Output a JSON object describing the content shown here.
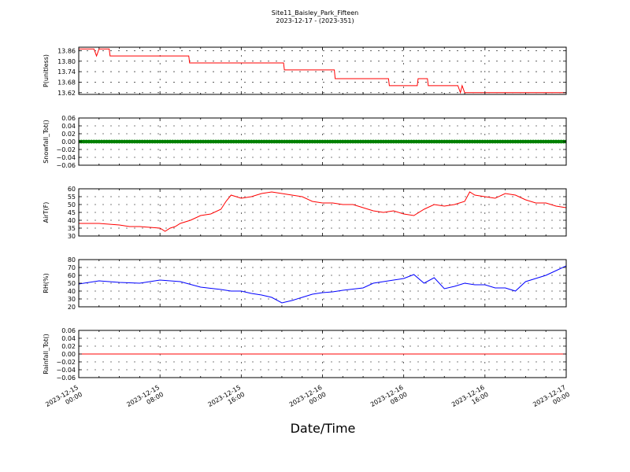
{
  "title": "Site11_Baisley_Park_Fifteen",
  "subtitle": "2023-12-17 - (2023-351)",
  "xlabel": "Date/Time",
  "chart_data": [
    {
      "type": "line",
      "ylabel": "P(unitless)",
      "ylim": [
        13.61,
        13.88
      ],
      "yticks": [
        13.62,
        13.68,
        13.74,
        13.8,
        13.86
      ],
      "ytick_labels": [
        "13.62",
        "13.68",
        "13.74",
        "13.80",
        "13.86"
      ],
      "grid": true,
      "series": [
        {
          "color": "#ff0000",
          "x": [
            "2023-12-15 00:00",
            "2023-12-15 01:30",
            "2023-12-15 01:45",
            "2023-12-15 02:00",
            "2023-12-15 03:00",
            "2023-12-15 03:05",
            "2023-12-15 08:00",
            "2023-12-15 10:50",
            "2023-12-15 10:55",
            "2023-12-15 20:10",
            "2023-12-15 20:15",
            "2023-12-16 01:10",
            "2023-12-16 01:15",
            "2023-12-16 06:30",
            "2023-12-16 06:35",
            "2023-12-16 09:20",
            "2023-12-16 09:25",
            "2023-12-16 10:20",
            "2023-12-16 10:25",
            "2023-12-16 13:20",
            "2023-12-16 13:35",
            "2023-12-16 13:45",
            "2023-12-16 14:00",
            "2023-12-17 00:00"
          ],
          "y": [
            13.87,
            13.87,
            13.83,
            13.87,
            13.87,
            13.83,
            13.83,
            13.83,
            13.79,
            13.79,
            13.75,
            13.75,
            13.7,
            13.7,
            13.66,
            13.66,
            13.7,
            13.7,
            13.66,
            13.66,
            13.62,
            13.66,
            13.62,
            13.62
          ]
        }
      ]
    },
    {
      "type": "scatter",
      "ylabel": "Snowfall_Tot()",
      "ylim": [
        -0.06,
        0.06
      ],
      "yticks": [
        -0.06,
        -0.04,
        -0.02,
        0.0,
        0.02,
        0.04,
        0.06
      ],
      "ytick_labels": [
        "−0.06",
        "−0.04",
        "−0.02",
        "0.00",
        "0.02",
        "0.04",
        "0.06"
      ],
      "grid": true,
      "series": [
        {
          "color": "#008000",
          "x_start": "2023-12-15 00:00",
          "x_end": "2023-12-17 00:00",
          "interval_minutes": 15,
          "value": 0.0
        }
      ]
    },
    {
      "type": "line",
      "ylabel": "AirT(F)",
      "ylim": [
        30,
        60
      ],
      "yticks": [
        30,
        35,
        40,
        45,
        50,
        55,
        60
      ],
      "ytick_labels": [
        "30",
        "35",
        "40",
        "45",
        "50",
        "55",
        "60"
      ],
      "grid": true,
      "series": [
        {
          "color": "#ff0000",
          "x": [
            "2023-12-15 00:00",
            "2023-12-15 02:00",
            "2023-12-15 04:00",
            "2023-12-15 05:00",
            "2023-12-15 06:00",
            "2023-12-15 08:00",
            "2023-12-15 08:30",
            "2023-12-15 09:00",
            "2023-12-15 09:30",
            "2023-12-15 10:00",
            "2023-12-15 11:00",
            "2023-12-15 12:00",
            "2023-12-15 13:00",
            "2023-12-15 14:00",
            "2023-12-15 14:30",
            "2023-12-15 15:00",
            "2023-12-15 16:00",
            "2023-12-15 17:00",
            "2023-12-15 18:00",
            "2023-12-15 19:00",
            "2023-12-15 20:00",
            "2023-12-15 21:00",
            "2023-12-15 22:00",
            "2023-12-15 23:00",
            "2023-12-16 00:00",
            "2023-12-16 01:00",
            "2023-12-16 02:00",
            "2023-12-16 03:00",
            "2023-12-16 04:00",
            "2023-12-16 05:00",
            "2023-12-16 06:00",
            "2023-12-16 07:00",
            "2023-12-16 08:00",
            "2023-12-16 09:00",
            "2023-12-16 10:00",
            "2023-12-16 11:00",
            "2023-12-16 12:00",
            "2023-12-16 13:00",
            "2023-12-16 14:00",
            "2023-12-16 14:30",
            "2023-12-16 15:00",
            "2023-12-16 16:00",
            "2023-12-16 17:00",
            "2023-12-16 18:00",
            "2023-12-16 19:00",
            "2023-12-16 20:00",
            "2023-12-16 21:00",
            "2023-12-16 22:00",
            "2023-12-16 23:00",
            "2023-12-17 00:00"
          ],
          "y": [
            38,
            38,
            37,
            36,
            36,
            35,
            33,
            35,
            36,
            38,
            40,
            43,
            44,
            47,
            52,
            56,
            54,
            55,
            57,
            58,
            57,
            56,
            55,
            52,
            51,
            51,
            50,
            50,
            48,
            46,
            45,
            46,
            44,
            43,
            47,
            50,
            49,
            50,
            52,
            58,
            56,
            55,
            54,
            57,
            56,
            53,
            51,
            51,
            49,
            48
          ]
        }
      ]
    },
    {
      "type": "line",
      "ylabel": "RH(%)",
      "ylim": [
        20,
        80
      ],
      "yticks": [
        20,
        30,
        40,
        50,
        60,
        70,
        80
      ],
      "ytick_labels": [
        "20",
        "30",
        "40",
        "50",
        "60",
        "70",
        "80"
      ],
      "grid": true,
      "series": [
        {
          "color": "#0000ff",
          "x": [
            "2023-12-15 00:00",
            "2023-12-15 02:00",
            "2023-12-15 04:00",
            "2023-12-15 06:00",
            "2023-12-15 08:00",
            "2023-12-15 10:00",
            "2023-12-15 12:00",
            "2023-12-15 14:00",
            "2023-12-15 15:00",
            "2023-12-15 16:00",
            "2023-12-15 17:00",
            "2023-12-15 18:00",
            "2023-12-15 19:00",
            "2023-12-15 20:00",
            "2023-12-15 21:00",
            "2023-12-15 22:00",
            "2023-12-15 23:00",
            "2023-12-16 00:00",
            "2023-12-16 01:00",
            "2023-12-16 02:00",
            "2023-12-16 04:00",
            "2023-12-16 05:00",
            "2023-12-16 06:00",
            "2023-12-16 07:00",
            "2023-12-16 08:00",
            "2023-12-16 09:00",
            "2023-12-16 10:00",
            "2023-12-16 11:00",
            "2023-12-16 12:00",
            "2023-12-16 13:00",
            "2023-12-16 14:00",
            "2023-12-16 15:00",
            "2023-12-16 16:00",
            "2023-12-16 17:00",
            "2023-12-16 18:00",
            "2023-12-16 19:00",
            "2023-12-16 20:00",
            "2023-12-16 21:00",
            "2023-12-16 22:00",
            "2023-12-16 23:00",
            "2023-12-17 00:00"
          ],
          "y": [
            49,
            53,
            51,
            50,
            54,
            52,
            45,
            42,
            40,
            40,
            37,
            35,
            32,
            25,
            28,
            32,
            36,
            38,
            39,
            41,
            44,
            50,
            52,
            54,
            56,
            61,
            50,
            57,
            43,
            46,
            50,
            48,
            48,
            44,
            44,
            40,
            52,
            56,
            60,
            66,
            72
          ]
        }
      ]
    },
    {
      "type": "line",
      "ylabel": "Rainfall_Tot()",
      "ylim": [
        -0.06,
        0.06
      ],
      "yticks": [
        -0.06,
        -0.04,
        -0.02,
        0.0,
        0.02,
        0.04,
        0.06
      ],
      "ytick_labels": [
        "−0.06",
        "−0.04",
        "−0.02",
        "0.00",
        "0.02",
        "0.04",
        "0.06"
      ],
      "grid": true,
      "series": [
        {
          "color": "#ff0000",
          "x": [
            "2023-12-15 00:00",
            "2023-12-17 00:00"
          ],
          "y": [
            0,
            0
          ]
        }
      ]
    }
  ],
  "xaxis": {
    "range": [
      "2023-12-15 00:00",
      "2023-12-17 00:00"
    ],
    "ticks": [
      "2023-12-15 00:00",
      "2023-12-15 08:00",
      "2023-12-15 16:00",
      "2023-12-16 00:00",
      "2023-12-16 08:00",
      "2023-12-16 16:00",
      "2023-12-17 00:00"
    ],
    "tick_labels": [
      [
        "2023-12-15",
        "00:00"
      ],
      [
        "2023-12-15",
        "08:00"
      ],
      [
        "2023-12-15",
        "16:00"
      ],
      [
        "2023-12-16",
        "00:00"
      ],
      [
        "2023-12-16",
        "08:00"
      ],
      [
        "2023-12-16",
        "16:00"
      ],
      [
        "2023-12-17",
        "00:00"
      ]
    ]
  }
}
